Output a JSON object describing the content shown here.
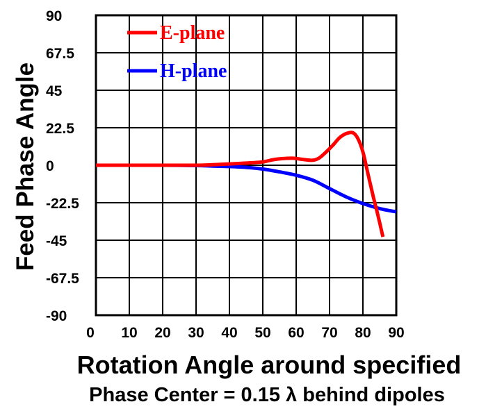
{
  "chart_data": {
    "type": "line",
    "ylabel": "Feed Phase Angle",
    "xlabel": "Rotation Angle around specified",
    "subtitle": "Phase Center = 0.15 λ behind dipoles",
    "xlim": [
      0,
      90
    ],
    "ylim": [
      -90,
      90
    ],
    "x_ticks": [
      "0",
      "10",
      "20",
      "30",
      "40",
      "50",
      "60",
      "70",
      "80",
      "90"
    ],
    "y_ticks": [
      "90",
      "67.5",
      "45",
      "22.5",
      "0",
      "-22.5",
      "-45",
      "-67.5",
      "-90"
    ],
    "grid": true,
    "legend_position": "top-left",
    "series": [
      {
        "name": "E-plane",
        "color": "#ff0000",
        "x": [
          0,
          10,
          20,
          30,
          35,
          40,
          45,
          50,
          53,
          56,
          59,
          62,
          65,
          67,
          69,
          71,
          73,
          75,
          77,
          78.5,
          80,
          81.5,
          83,
          84.5,
          86
        ],
        "y": [
          0,
          0,
          0,
          0,
          0.3,
          0.8,
          1.3,
          2,
          3.3,
          4,
          4.2,
          3.5,
          3,
          4.5,
          8,
          12,
          16.5,
          19,
          19.5,
          16,
          8,
          -5,
          -18,
          -30,
          -43
        ]
      },
      {
        "name": "H-plane",
        "color": "#0000ff",
        "x": [
          0,
          10,
          20,
          30,
          35,
          40,
          45,
          50,
          55,
          60,
          65,
          70,
          75,
          80,
          85,
          90
        ],
        "y": [
          0,
          0,
          0,
          -0.2,
          -0.5,
          -0.8,
          -1.3,
          -2.3,
          -4,
          -6,
          -9,
          -14,
          -19,
          -23,
          -26,
          -28
        ]
      }
    ]
  }
}
